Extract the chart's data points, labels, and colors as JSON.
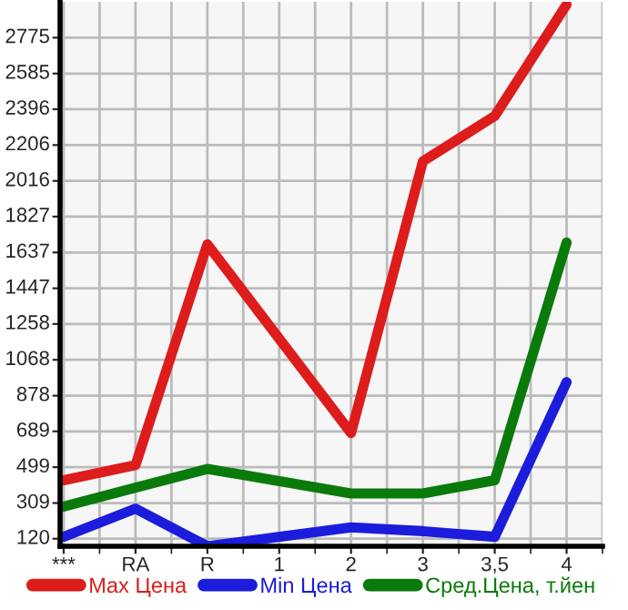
{
  "chart_data": {
    "type": "line",
    "categories": [
      "***",
      "RA",
      "R",
      "1",
      "2",
      "3",
      "3,5",
      "4"
    ],
    "series": [
      {
        "name": "Max Цена",
        "color": "#dd1c1c",
        "values": [
          430,
          510,
          1680,
          null,
          680,
          2120,
          2360,
          2950
        ]
      },
      {
        "name": "Min Цена",
        "color": "#1c1cdc",
        "values": [
          130,
          280,
          80,
          null,
          180,
          160,
          130,
          950
        ]
      },
      {
        "name": "Сред.Цена, т.йен",
        "color": "#0a7a0a",
        "values": [
          290,
          390,
          490,
          null,
          360,
          360,
          430,
          1690
        ]
      }
    ],
    "ylim": [
      80,
      2965
    ],
    "yticks": [
      120,
      309,
      499,
      689,
      878,
      1068,
      1258,
      1447,
      1637,
      1827,
      2016,
      2206,
      2396,
      2585,
      2775
    ],
    "grid": true,
    "legend": "bottom",
    "marker": "none",
    "line_style": "solid"
  }
}
